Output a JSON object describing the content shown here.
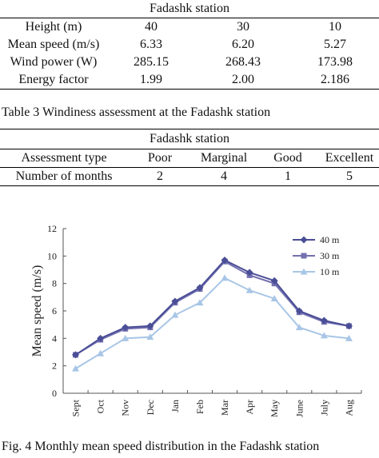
{
  "table2_caption": "Table 3 Windiness assessment at the Fadashk station",
  "figure_caption": "Fig. 4 Monthly mean speed distribution in the Fadashk station",
  "table1": {
    "title": "Fadashk station",
    "rows": [
      [
        "Height (m)",
        "40",
        "30",
        "10"
      ],
      [
        "Mean speed (m/s)",
        "6.33",
        "6.20",
        "5.27"
      ],
      [
        "Wind power (W)",
        "285.15",
        "268.43",
        "173.98"
      ],
      [
        "Energy factor",
        "1.99",
        "2.00",
        "2.186"
      ]
    ]
  },
  "table2": {
    "title": "Fadashk station",
    "rows": [
      [
        "Assessment type",
        "Poor",
        "Marginal",
        "Good",
        "Excellent"
      ],
      [
        "Number of months",
        "2",
        "4",
        "1",
        "5"
      ]
    ]
  },
  "chart_data": {
    "type": "line",
    "categories": [
      "Sept",
      "Oct",
      "Nov",
      "Dec",
      "Jan",
      "Feb",
      "Mar",
      "Apr",
      "May",
      "June",
      "July",
      "Aug"
    ],
    "series": [
      {
        "name": "40 m",
        "color": "#4a4e96",
        "marker": "diamond",
        "values": [
          2.8,
          4.0,
          4.8,
          4.9,
          6.7,
          7.7,
          9.7,
          8.8,
          8.2,
          6.0,
          5.3,
          4.9
        ]
      },
      {
        "name": "30 m",
        "color": "#7370b0",
        "marker": "square",
        "values": [
          2.8,
          3.9,
          4.7,
          4.8,
          6.6,
          7.6,
          9.6,
          8.6,
          8.0,
          5.9,
          5.2,
          4.9
        ]
      },
      {
        "name": "10 m",
        "color": "#a8c6e6",
        "marker": "triangle",
        "values": [
          1.8,
          2.9,
          4.0,
          4.1,
          5.7,
          6.6,
          8.4,
          7.5,
          6.9,
          4.8,
          4.2,
          4.0
        ]
      }
    ],
    "ylabel": "Mean speed (m/s)",
    "xlabel": "",
    "ylim": [
      0,
      12
    ],
    "yticks": [
      "0",
      "2",
      "4",
      "6",
      "8",
      "10",
      "12"
    ],
    "grid": false,
    "legend": "top-right"
  }
}
